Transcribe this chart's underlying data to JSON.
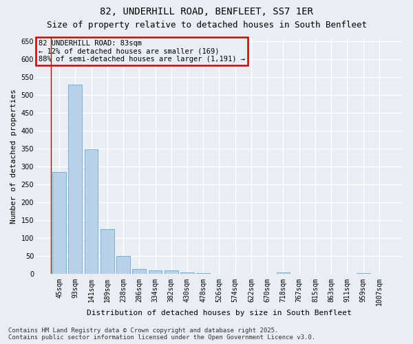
{
  "title_line1": "82, UNDERHILL ROAD, BENFLEET, SS7 1ER",
  "title_line2": "Size of property relative to detached houses in South Benfleet",
  "xlabel": "Distribution of detached houses by size in South Benfleet",
  "ylabel": "Number of detached properties",
  "categories": [
    "45sqm",
    "93sqm",
    "141sqm",
    "189sqm",
    "238sqm",
    "286sqm",
    "334sqm",
    "382sqm",
    "430sqm",
    "478sqm",
    "526sqm",
    "574sqm",
    "622sqm",
    "670sqm",
    "718sqm",
    "767sqm",
    "815sqm",
    "863sqm",
    "911sqm",
    "959sqm",
    "1007sqm"
  ],
  "values": [
    285,
    530,
    348,
    125,
    50,
    15,
    10,
    10,
    5,
    3,
    0,
    0,
    0,
    0,
    5,
    0,
    0,
    0,
    0,
    3,
    0
  ],
  "bar_color": "#b8d0e8",
  "bar_edge_color": "#7aafd4",
  "background_color": "#e8eef4",
  "grid_color": "#ffffff",
  "annotation_box_text": "82 UNDERHILL ROAD: 83sqm\n← 12% of detached houses are smaller (169)\n88% of semi-detached houses are larger (1,191) →",
  "annotation_box_color": "#cc0000",
  "red_line_x": 0,
  "ylim": [
    0,
    660
  ],
  "yticks": [
    0,
    50,
    100,
    150,
    200,
    250,
    300,
    350,
    400,
    450,
    500,
    550,
    600,
    650
  ],
  "footer_line1": "Contains HM Land Registry data © Crown copyright and database right 2025.",
  "footer_line2": "Contains public sector information licensed under the Open Government Licence v3.0.",
  "title_fontsize": 10,
  "subtitle_fontsize": 9,
  "axis_label_fontsize": 8,
  "tick_fontsize": 7,
  "annotation_fontsize": 7.5,
  "footer_fontsize": 6.5
}
